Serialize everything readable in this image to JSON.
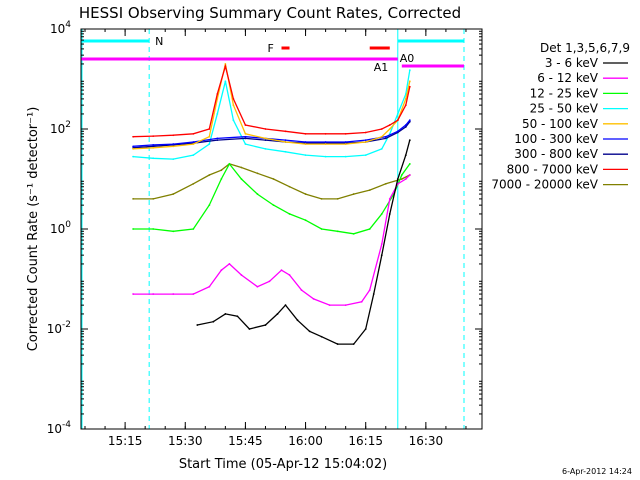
{
  "chart_data": {
    "type": "line",
    "title": "HESSI Observing Summary Count Rates, Corrected",
    "xlabel": "Start Time (05-Apr-12 15:04:02)",
    "ylabel": "Corrected Count Rate (s⁻¹ detector⁻¹)",
    "xlim": [
      "15:04",
      "16:44"
    ],
    "ylim": [
      0.0001,
      10000
    ],
    "yscale": "log",
    "x_ticks": [
      "15:15",
      "15:30",
      "15:45",
      "16:00",
      "16:15",
      "16:30"
    ],
    "y_ticks": [
      "10^-4",
      "10^-2",
      "10^0",
      "10^2",
      "10^4"
    ],
    "legend_title": "Det 1,3,5,6,7,9",
    "legend_position": "right",
    "footer_date": "6-Apr-2012 14:24",
    "series": [
      {
        "name": "3 - 6 keV",
        "color": "#000000",
        "x": [
          "15:33",
          "15:37",
          "15:40",
          "15:43",
          "15:46",
          "15:50",
          "15:53",
          "15:55",
          "15:58",
          "16:01",
          "16:04",
          "16:08",
          "16:12",
          "16:15",
          "16:17",
          "16:19",
          "16:21",
          "16:23",
          "16:25",
          "16:26"
        ],
        "y": [
          0.012,
          0.014,
          0.02,
          0.018,
          0.01,
          0.012,
          0.02,
          0.03,
          0.015,
          0.009,
          0.007,
          0.005,
          0.005,
          0.01,
          0.05,
          0.3,
          2,
          10,
          30,
          60
        ]
      },
      {
        "name": "6 - 12 keV",
        "color": "#ff00ff",
        "x": [
          "15:17",
          "15:22",
          "15:27",
          "15:32",
          "15:36",
          "15:39",
          "15:41",
          "15:44",
          "15:48",
          "15:51",
          "15:54",
          "15:56",
          "15:59",
          "16:02",
          "16:06",
          "16:10",
          "16:14",
          "16:16",
          "16:19",
          "16:21",
          "16:23",
          "16:25",
          "16:26"
        ],
        "y": [
          0.05,
          0.05,
          0.05,
          0.05,
          0.07,
          0.15,
          0.2,
          0.12,
          0.07,
          0.09,
          0.15,
          0.12,
          0.06,
          0.04,
          0.03,
          0.03,
          0.035,
          0.06,
          0.5,
          4,
          8,
          10,
          12
        ]
      },
      {
        "name": "12 - 25 keV",
        "color": "#00ff00",
        "x": [
          "15:17",
          "15:22",
          "15:27",
          "15:32",
          "15:36",
          "15:39",
          "15:41",
          "15:44",
          "15:48",
          "15:52",
          "15:56",
          "16:00",
          "16:04",
          "16:08",
          "16:12",
          "16:16",
          "16:19",
          "16:22",
          "16:24",
          "16:26"
        ],
        "y": [
          1,
          1,
          0.9,
          1,
          3,
          10,
          20,
          10,
          5,
          3,
          2,
          1.5,
          1,
          0.9,
          0.8,
          1,
          2,
          5,
          12,
          20
        ]
      },
      {
        "name": "25 - 50 keV",
        "color": "#00ffff",
        "x": [
          "15:17",
          "15:22",
          "15:27",
          "15:32",
          "15:36",
          "15:38",
          "15:40",
          "15:42",
          "15:45",
          "15:50",
          "15:55",
          "16:00",
          "16:05",
          "16:10",
          "16:15",
          "16:19",
          "16:21",
          "16:23",
          "16:25",
          "16:26"
        ],
        "y": [
          28,
          26,
          25,
          30,
          50,
          200,
          900,
          150,
          50,
          40,
          35,
          30,
          28,
          28,
          30,
          40,
          80,
          200,
          500,
          1500
        ]
      },
      {
        "name": "50 - 100 keV",
        "color": "#ffc000",
        "x": [
          "15:17",
          "15:22",
          "15:27",
          "15:32",
          "15:36",
          "15:38",
          "15:40",
          "15:42",
          "15:45",
          "15:50",
          "15:55",
          "16:00",
          "16:05",
          "16:10",
          "16:15",
          "16:19",
          "16:21",
          "16:23",
          "16:25",
          "16:26"
        ],
        "y": [
          40,
          42,
          45,
          50,
          70,
          400,
          2000,
          300,
          80,
          65,
          55,
          50,
          50,
          50,
          55,
          70,
          100,
          150,
          400,
          900
        ]
      },
      {
        "name": "100 - 300 keV",
        "color": "#0000ff",
        "x": [
          "15:17",
          "15:22",
          "15:27",
          "15:32",
          "15:38",
          "15:45",
          "15:50",
          "15:55",
          "16:00",
          "16:05",
          "16:10",
          "16:15",
          "16:20",
          "16:23",
          "16:25",
          "16:26"
        ],
        "y": [
          45,
          48,
          50,
          55,
          65,
          70,
          65,
          60,
          55,
          55,
          55,
          60,
          70,
          90,
          120,
          150
        ]
      },
      {
        "name": "300 - 800 keV",
        "color": "#00008b",
        "x": [
          "15:17",
          "15:22",
          "15:27",
          "15:32",
          "15:38",
          "15:45",
          "15:50",
          "15:55",
          "16:00",
          "16:05",
          "16:10",
          "16:15",
          "16:20",
          "16:23",
          "16:25",
          "16:26"
        ],
        "y": [
          42,
          45,
          48,
          52,
          60,
          65,
          60,
          55,
          52,
          52,
          52,
          55,
          65,
          85,
          110,
          140
        ]
      },
      {
        "name": "800 - 7000 keV",
        "color": "#ff0000",
        "x": [
          "15:17",
          "15:22",
          "15:27",
          "15:32",
          "15:36",
          "15:38",
          "15:40",
          "15:42",
          "15:45",
          "15:50",
          "15:55",
          "16:00",
          "16:05",
          "16:10",
          "16:15",
          "16:19",
          "16:21",
          "16:23",
          "16:25",
          "16:26"
        ],
        "y": [
          70,
          72,
          75,
          80,
          100,
          500,
          1800,
          400,
          120,
          100,
          90,
          80,
          80,
          80,
          85,
          100,
          120,
          150,
          300,
          700
        ]
      },
      {
        "name": "7000 - 20000 keV",
        "color": "#808000",
        "x": [
          "15:17",
          "15:22",
          "15:27",
          "15:32",
          "15:36",
          "15:39",
          "15:41",
          "15:44",
          "15:48",
          "15:52",
          "15:56",
          "16:00",
          "16:04",
          "16:08",
          "16:12",
          "16:16",
          "16:20",
          "16:24",
          "16:26"
        ],
        "y": [
          4,
          4,
          5,
          8,
          12,
          15,
          20,
          17,
          13,
          10,
          7,
          5,
          4,
          4,
          5,
          6,
          8,
          10,
          12
        ]
      }
    ],
    "annotations": [
      {
        "label": "N",
        "x": "15:21",
        "color": "#00ffff"
      },
      {
        "label": "F",
        "x": "15:55",
        "color": "#ff0000"
      },
      {
        "label": "A0",
        "x": "16:23",
        "color": "#ff00ff"
      },
      {
        "label": "A1",
        "x": "16:17",
        "color": "#ff00ff"
      }
    ]
  }
}
